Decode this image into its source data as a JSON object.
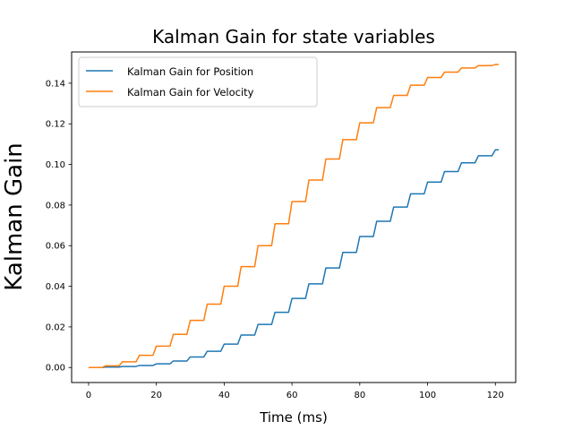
{
  "chart_data": {
    "type": "line",
    "title": "Kalman Gain for state variables",
    "xlabel": "Time (ms)",
    "ylabel": "Kalman Gain",
    "xlim": [
      -5,
      126
    ],
    "ylim": [
      -0.0074,
      0.1554
    ],
    "xticks": [
      0,
      20,
      40,
      60,
      80,
      100,
      120
    ],
    "yticks": [
      0.0,
      0.02,
      0.04,
      0.06,
      0.08,
      0.1,
      0.12,
      0.14
    ],
    "ytick_labels": [
      "0.00",
      "0.02",
      "0.04",
      "0.06",
      "0.08",
      "0.10",
      "0.12",
      "0.14"
    ],
    "grid": false,
    "legend_position": "top-left",
    "step_width": 5,
    "x_end": 121,
    "colors": {
      "position": "#1f77b4",
      "velocity": "#ff7f0e"
    },
    "series": [
      {
        "name": "Kalman Gain for Position",
        "x": [
          0,
          5,
          10,
          15,
          20,
          25,
          30,
          35,
          40,
          45,
          50,
          55,
          60,
          65,
          70,
          75,
          80,
          85,
          90,
          95,
          100,
          105,
          110,
          115,
          120
        ],
        "values": [
          0.0,
          0.0002,
          0.0005,
          0.001,
          0.0018,
          0.0032,
          0.0052,
          0.008,
          0.0115,
          0.016,
          0.0212,
          0.0272,
          0.034,
          0.0412,
          0.049,
          0.0567,
          0.0645,
          0.072,
          0.079,
          0.0855,
          0.0913,
          0.0965,
          0.1008,
          0.1043,
          0.1072
        ]
      },
      {
        "name": "Kalman Gain for Velocity",
        "x": [
          0,
          5,
          10,
          15,
          20,
          25,
          30,
          35,
          40,
          45,
          50,
          55,
          60,
          65,
          70,
          75,
          80,
          85,
          90,
          95,
          100,
          105,
          110,
          115,
          120
        ],
        "values": [
          0.0,
          0.0008,
          0.0028,
          0.006,
          0.0105,
          0.0163,
          0.0232,
          0.0312,
          0.04,
          0.0497,
          0.06,
          0.0708,
          0.0817,
          0.0923,
          0.1027,
          0.1122,
          0.1205,
          0.128,
          0.134,
          0.139,
          0.1428,
          0.1455,
          0.1475,
          0.1487,
          0.1492
        ]
      }
    ]
  }
}
